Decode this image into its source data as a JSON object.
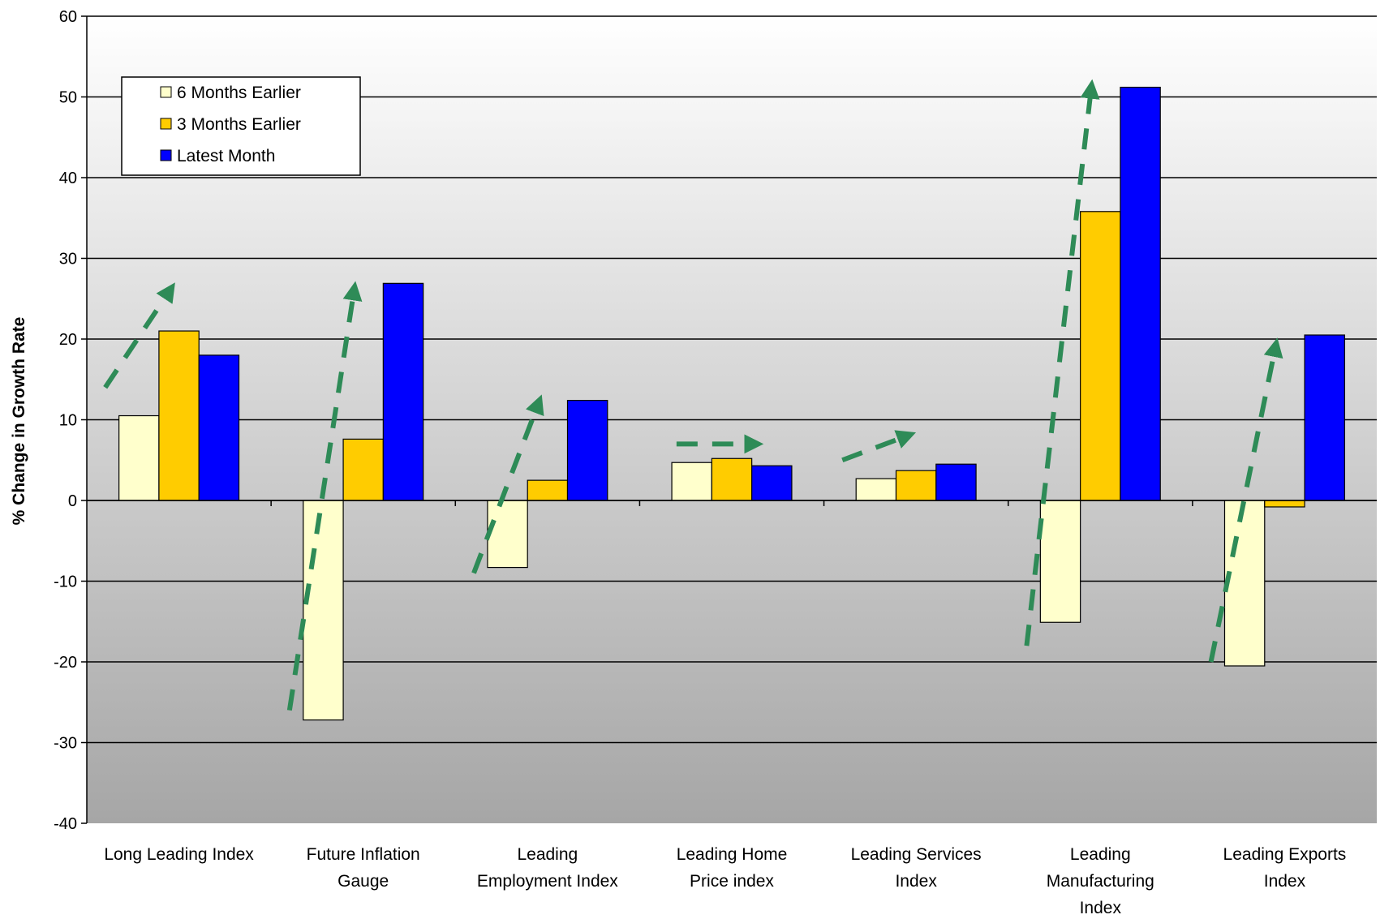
{
  "colors": {
    "six_months": "#ffffcc",
    "three_months": "#ffcc00",
    "latest": "#0000ff",
    "arrow": "#2e8b57",
    "grid": "#000000",
    "plot_top": "#ffffff",
    "plot_bottom": "#a6a6a6"
  },
  "chart_data": {
    "type": "bar",
    "title": "",
    "xlabel": "",
    "ylabel": "% Change in Growth Rate",
    "ylim": [
      -40,
      60
    ],
    "yticks": [
      -40,
      -30,
      -20,
      -10,
      0,
      10,
      20,
      30,
      40,
      50,
      60
    ],
    "grid": true,
    "legend_position": "top-left",
    "categories": [
      [
        "Long Leading Index"
      ],
      [
        "Future Inflation",
        "Gauge"
      ],
      [
        "Leading",
        "Employment Index"
      ],
      [
        "Leading Home",
        "Price index"
      ],
      [
        "Leading Services",
        "Index"
      ],
      [
        "Leading",
        "Manufacturing",
        "Index"
      ],
      [
        "Leading Exports",
        "Index"
      ]
    ],
    "series": [
      {
        "name": "6 Months Earlier",
        "color_key": "six_months",
        "values": [
          10.5,
          -27.2,
          -8.3,
          4.7,
          2.7,
          -15.1,
          -20.5
        ]
      },
      {
        "name": "3 Months Earlier",
        "color_key": "three_months",
        "values": [
          21.0,
          7.6,
          2.5,
          5.2,
          3.7,
          35.8,
          -0.8
        ]
      },
      {
        "name": "Latest Month",
        "color_key": "latest",
        "values": [
          18.0,
          26.9,
          12.4,
          4.3,
          4.5,
          51.2,
          20.5
        ]
      }
    ],
    "trend_arrows": [
      {
        "category_index": 0,
        "from": 14,
        "to": 26
      },
      {
        "category_index": 1,
        "from": -26,
        "to": 26
      },
      {
        "category_index": 2,
        "from": -9,
        "to": 12
      },
      {
        "category_index": 3,
        "from": 7,
        "to": 7
      },
      {
        "category_index": 4,
        "from": 5,
        "to": 8
      },
      {
        "category_index": 5,
        "from": -18,
        "to": 51
      },
      {
        "category_index": 6,
        "from": -20,
        "to": 19
      }
    ]
  }
}
